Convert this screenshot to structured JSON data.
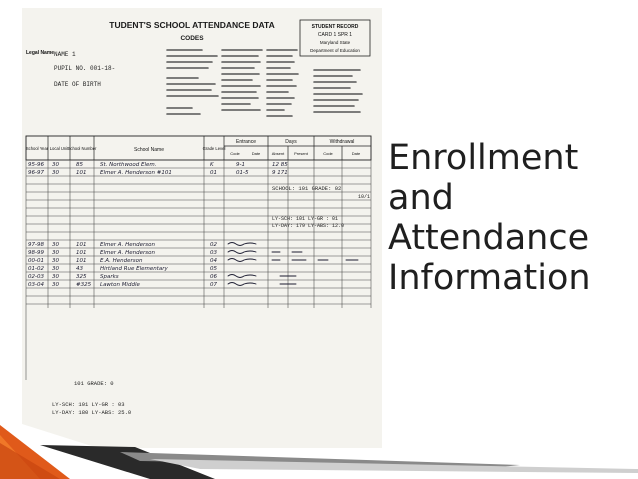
{
  "slide": {
    "title_lines": [
      "Enrollment",
      "and",
      "Attendance",
      "Information"
    ]
  },
  "document": {
    "heading": "TUDENT'S SCHOOL ATTENDANCE DATA",
    "codes_heading": "CODES",
    "legal_name_label": "Legal Name",
    "name_value": "NAME  1",
    "pupil_no": "PUPIL NO.  001-18-",
    "date_of_birth": "DATE OF BIRTH",
    "student_record_box": [
      "STUDENT RECORD",
      "CARD 1   SPR 1",
      "Maryland State",
      "Department of Education"
    ],
    "columns": {
      "school_year": "School Year",
      "local_unit": "Local Unit",
      "school_number": "School Number",
      "school_name": "School Name",
      "grade_level": "Grade Level",
      "entrance": "Entrance",
      "days": "Days",
      "withdrawal": "Withdrawal",
      "code": "Code",
      "date": "Date",
      "absent": "Absent",
      "present": "Present"
    },
    "rows": [
      {
        "year": "95-96",
        "unit": "30",
        "school": "85",
        "name": "St. Northwood Elem.",
        "grade": "K",
        "entry": "9-1",
        "days": "12 85"
      },
      {
        "year": "96-97",
        "unit": "30",
        "school": "101",
        "name": "Elmer A. Henderson #101",
        "grade": "01",
        "entry": "01-5",
        "days": "9 171"
      }
    ],
    "annotations": {
      "school_line": "SCHOOL:  101      GRADE:  02",
      "slash": "10/1",
      "ly_block_1": [
        "LY-SCH: 101   LY-GR : 01",
        "LY-DAY: 179   LY-ABS:  12.0"
      ],
      "ly_block_2": [
        "LY-SCH: 101   LY-GR : 03",
        "LY-DAY: 180   LY-ABS:  25.0"
      ],
      "bottom_school": "101      GRADE: 0"
    },
    "rows_lower": [
      {
        "year": "97-98",
        "unit": "30",
        "school": "101",
        "name": "Elmer A. Henderson",
        "grade": "02"
      },
      {
        "year": "98-99",
        "unit": "30",
        "school": "101",
        "name": "Elmer A. Henderson",
        "grade": "03"
      },
      {
        "year": "00-01",
        "unit": "30",
        "school": "101",
        "name": "E.A. Henderson",
        "grade": "04"
      },
      {
        "year": "01-02",
        "unit": "30",
        "school": "43",
        "name": "Hirtland Rue Elementary",
        "grade": "05"
      },
      {
        "year": "02-03",
        "unit": "30",
        "school": "325",
        "name": "Sparks",
        "grade": "06"
      },
      {
        "year": "03-04",
        "unit": "30",
        "school": "#325",
        "name": "Lawton Middle",
        "grade": "07"
      }
    ]
  }
}
